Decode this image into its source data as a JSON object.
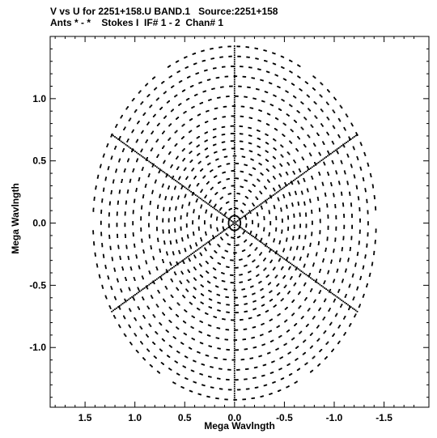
{
  "chart_data": {
    "type": "scatter",
    "title_line1": "V vs U for 2251+158.U BAND.1   Source:2251+158",
    "title_line2": "Ants * - *    Stokes I  IF# 1 - 2  Chan# 1",
    "xlabel": "Mega Wavlngth",
    "ylabel": "Mega Wavlngth",
    "xlim": [
      1.85,
      -1.95
    ],
    "ylim": [
      -1.48,
      1.5
    ],
    "x_reversed": true,
    "x_ticks": [
      1.5,
      1.0,
      0.5,
      0.0,
      -0.5,
      -1.0,
      -1.5
    ],
    "x_tick_labels": [
      "1.5",
      "1.0",
      "0.5",
      "0.0",
      "-0.5",
      "-1.0",
      "-1.5"
    ],
    "y_ticks": [
      1.0,
      0.5,
      0.0,
      -0.5,
      -1.0
    ],
    "y_tick_labels": [
      "1.0",
      "0.5",
      "0.0",
      "-0.5",
      "-1.0"
    ],
    "arms": [
      {
        "angle_deg": 90,
        "length": 1.43
      },
      {
        "angle_deg": 30,
        "length": 1.43
      },
      {
        "angle_deg": -30,
        "length": 1.43
      },
      {
        "angle_deg": -90,
        "length": 1.43
      },
      {
        "angle_deg": -150,
        "length": 1.43
      },
      {
        "angle_deg": 150,
        "length": 1.43
      }
    ],
    "ring_radii": [
      0.06,
      0.12,
      0.18,
      0.24,
      0.3,
      0.36,
      0.42,
      0.48,
      0.54,
      0.6,
      0.66,
      0.72,
      0.78,
      0.86,
      0.94,
      1.02,
      1.1,
      1.18,
      1.26,
      1.34,
      1.42
    ],
    "grid": false,
    "marker_color": "#000000"
  }
}
